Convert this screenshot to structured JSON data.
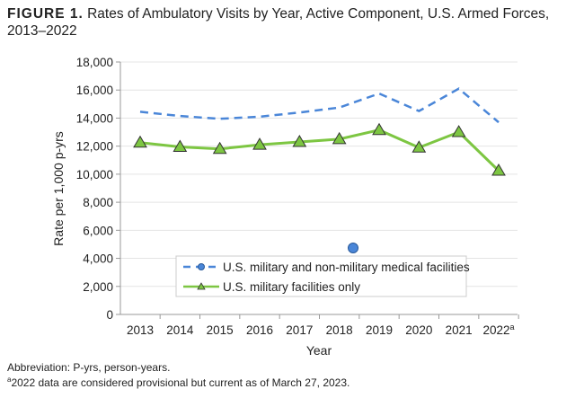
{
  "figure_label": "FIGURE 1.",
  "title_text": "Rates of Ambulatory Visits by Year, Active Component, U.S. Armed Forces, 2013–2022",
  "footnotes": {
    "abbreviation": "Abbreviation: P-yrs, person-years.",
    "note_marker": "a",
    "note": "2022 data are considered provisional but current as of March 27, 2023."
  },
  "chart_data": {
    "type": "line",
    "xlabel": "Year",
    "ylabel": "Rate per 1,000 p-yrs",
    "categories": [
      "2013",
      "2014",
      "2015",
      "2016",
      "2017",
      "2018",
      "2019",
      "2020",
      "2021",
      "2022"
    ],
    "category_superscripts": {
      "2022": "a"
    },
    "ylim": [
      0,
      18000
    ],
    "yticks": [
      "0",
      "2,000",
      "4,000",
      "6,000",
      "8,000",
      "10,000",
      "12,000",
      "14,000",
      "16,000",
      "18,000"
    ],
    "grid": true,
    "legend_position": "bottom-center (inside plot)",
    "series": [
      {
        "name": "U.S. military and non-military medical facilities",
        "color": "#4a86d8",
        "style": "dashed",
        "marker": "circle",
        "values": [
          14450,
          14150,
          13950,
          14100,
          14400,
          14750,
          15750,
          14500,
          16100,
          13700
        ]
      },
      {
        "name": "U.S. military facilities only",
        "color": "#7dc642",
        "style": "solid",
        "marker": "triangle",
        "values": [
          12250,
          11950,
          11800,
          12100,
          12300,
          12500,
          13150,
          11900,
          13000,
          10250
        ]
      }
    ]
  }
}
